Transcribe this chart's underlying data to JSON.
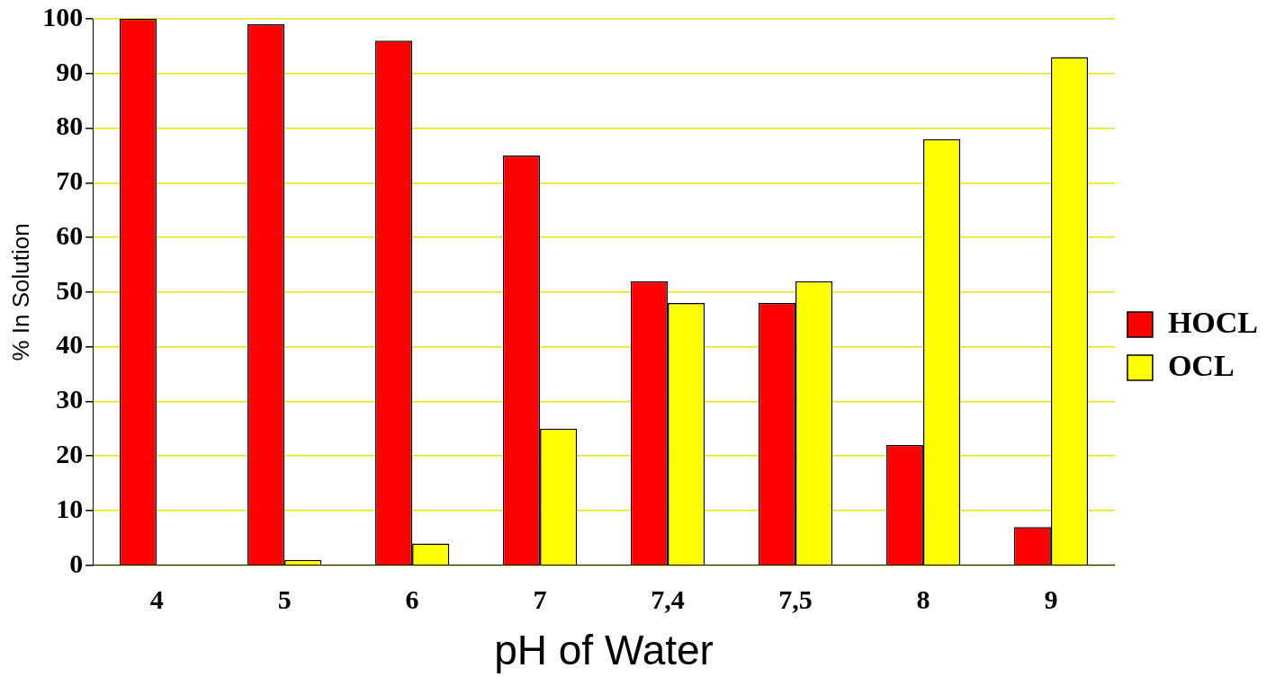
{
  "chart_data": {
    "type": "bar",
    "xlabel": "pH of Water",
    "ylabel": "% In Solution",
    "categories": [
      "4",
      "5",
      "6",
      "7",
      "7,4",
      "7,5",
      "8",
      "9"
    ],
    "series": [
      {
        "name": "HOCL",
        "color": "#ff0000",
        "values": [
          100,
          99,
          96,
          75,
          52,
          48,
          22,
          7
        ]
      },
      {
        "name": "OCL",
        "color": "#ffff00",
        "values": [
          0,
          1,
          4,
          25,
          48,
          52,
          78,
          93
        ]
      }
    ],
    "ylim": [
      0,
      100
    ],
    "yticks": [
      0,
      10,
      20,
      30,
      40,
      50,
      60,
      70,
      80,
      90,
      100
    ],
    "grid": "y",
    "legend": "right"
  }
}
